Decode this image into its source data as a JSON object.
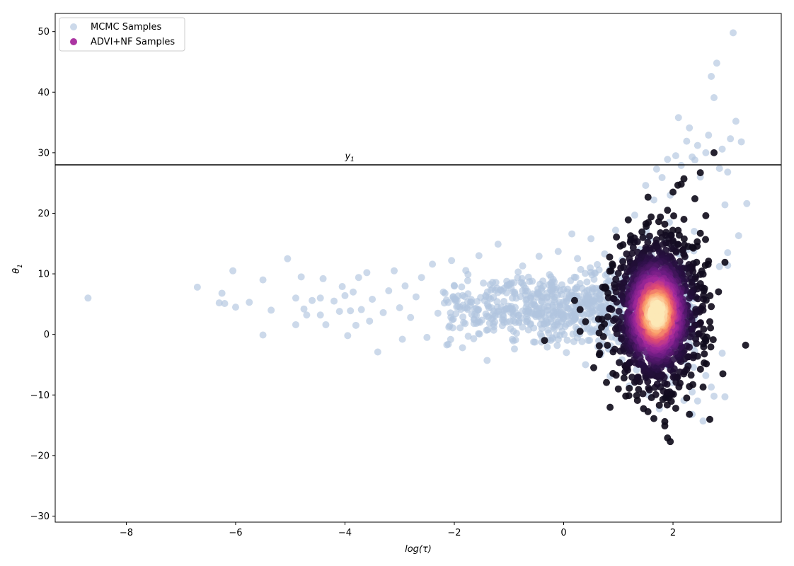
{
  "chart_data": {
    "type": "scatter",
    "title": "",
    "xlabel": "log(τ)",
    "ylabel": "θ",
    "ylabel_subscript": "1",
    "xlim": [
      -9.3,
      3.98
    ],
    "ylim": [
      -31,
      53
    ],
    "xticks": [
      -8,
      -6,
      -4,
      -2,
      0,
      2
    ],
    "yticks": [
      -30,
      -20,
      -10,
      0,
      10,
      20,
      30,
      40,
      50
    ],
    "xtick_labels": [
      "−8",
      "−6",
      "−4",
      "−2",
      "0",
      "2"
    ],
    "ytick_labels": [
      "−30",
      "−20",
      "−10",
      "0",
      "10",
      "20",
      "30",
      "40",
      "50"
    ],
    "grid": false,
    "legend_position": "top-left",
    "reference_line": {
      "y": 28,
      "label": "y",
      "label_subscript": "1",
      "label_x": -4
    },
    "series": [
      {
        "name": "MCMC Samples",
        "color": "#b0c4de",
        "points": [
          [
            -8.7,
            6.0
          ],
          [
            -6.7,
            7.8
          ],
          [
            -6.3,
            5.2
          ],
          [
            -6.25,
            6.8
          ],
          [
            -6.2,
            5.1
          ],
          [
            -6.05,
            10.5
          ],
          [
            -6.0,
            4.5
          ],
          [
            -5.75,
            5.3
          ],
          [
            -5.5,
            9.0
          ],
          [
            -5.5,
            -0.1
          ],
          [
            -5.35,
            4.0
          ],
          [
            -5.05,
            12.5
          ],
          [
            -4.9,
            6.0
          ],
          [
            -4.9,
            1.6
          ],
          [
            -4.8,
            9.5
          ],
          [
            -4.75,
            4.2
          ],
          [
            -4.7,
            3.2
          ],
          [
            -4.6,
            5.6
          ],
          [
            -4.45,
            6.0
          ],
          [
            -4.45,
            3.2
          ],
          [
            -4.4,
            9.2
          ],
          [
            -4.35,
            1.6
          ],
          [
            -4.2,
            5.5
          ],
          [
            -4.1,
            3.8
          ],
          [
            -4.05,
            7.9
          ],
          [
            -4.0,
            6.4
          ],
          [
            -3.95,
            -0.2
          ],
          [
            -3.9,
            3.9
          ],
          [
            -3.85,
            7.0
          ],
          [
            -3.8,
            1.5
          ],
          [
            -3.75,
            9.4
          ],
          [
            -3.7,
            4.1
          ],
          [
            -3.6,
            10.2
          ],
          [
            -3.55,
            2.2
          ],
          [
            -3.5,
            5.8
          ],
          [
            -3.4,
            -2.9
          ],
          [
            -3.3,
            3.6
          ],
          [
            -3.2,
            7.2
          ],
          [
            -3.1,
            10.5
          ],
          [
            -3.0,
            4.4
          ],
          [
            -2.95,
            -0.8
          ],
          [
            -2.9,
            8.0
          ],
          [
            -2.8,
            2.8
          ],
          [
            -2.7,
            6.2
          ],
          [
            -2.6,
            9.4
          ],
          [
            -2.5,
            -0.5
          ],
          [
            -2.4,
            11.6
          ],
          [
            -2.3,
            3.5
          ],
          [
            -2.2,
            7.0
          ],
          [
            -2.1,
            1.2
          ],
          [
            -2.05,
            12.2
          ],
          [
            -1.95,
            5.6
          ],
          [
            -1.85,
            -2.2
          ],
          [
            -1.75,
            9.9
          ],
          [
            -1.6,
            4.3
          ],
          [
            -1.55,
            13.0
          ],
          [
            -1.4,
            -4.3
          ],
          [
            -1.3,
            7.6
          ],
          [
            -1.2,
            14.9
          ],
          [
            -1.1,
            2.4
          ],
          [
            -0.9,
            -2.4
          ],
          [
            -0.75,
            11.3
          ],
          [
            -0.6,
            6.0
          ],
          [
            -0.45,
            12.9
          ],
          [
            -0.3,
            -2.1
          ],
          [
            -0.2,
            4.8
          ],
          [
            -0.1,
            13.7
          ],
          [
            0.05,
            -3.0
          ],
          [
            0.15,
            16.6
          ],
          [
            0.3,
            8.4
          ],
          [
            0.4,
            -5.0
          ],
          [
            0.5,
            15.8
          ],
          [
            0.6,
            0.9
          ],
          [
            0.75,
            13.3
          ],
          [
            0.85,
            -6.9
          ],
          [
            0.95,
            17.2
          ],
          [
            1.1,
            11.0
          ],
          [
            1.2,
            -8.5
          ],
          [
            1.3,
            19.7
          ],
          [
            1.4,
            14.0
          ],
          [
            1.5,
            24.6
          ],
          [
            1.55,
            -10.0
          ],
          [
            1.65,
            22.2
          ],
          [
            1.7,
            27.3
          ],
          [
            1.75,
            -12.3
          ],
          [
            1.8,
            25.9
          ],
          [
            1.9,
            28.9
          ],
          [
            1.95,
            23.0
          ],
          [
            2.05,
            29.5
          ],
          [
            2.1,
            35.8
          ],
          [
            2.15,
            27.9
          ],
          [
            2.2,
            -10.9
          ],
          [
            2.25,
            31.9
          ],
          [
            2.3,
            34.1
          ],
          [
            2.35,
            29.3
          ],
          [
            2.4,
            28.8
          ],
          [
            2.45,
            31.2
          ],
          [
            2.5,
            26.0
          ],
          [
            2.55,
            -14.3
          ],
          [
            2.6,
            30.0
          ],
          [
            2.65,
            32.9
          ],
          [
            2.7,
            42.6
          ],
          [
            2.75,
            39.1
          ],
          [
            2.8,
            44.8
          ],
          [
            2.85,
            27.4
          ],
          [
            2.9,
            30.6
          ],
          [
            2.95,
            21.4
          ],
          [
            3.0,
            26.8
          ],
          [
            3.05,
            32.3
          ],
          [
            3.1,
            49.8
          ],
          [
            3.15,
            35.2
          ],
          [
            3.2,
            16.3
          ],
          [
            3.25,
            31.8
          ],
          [
            3.35,
            21.6
          ],
          [
            2.75,
            -10.2
          ],
          [
            2.95,
            -10.3
          ],
          [
            2.35,
            -13.2
          ],
          [
            2.9,
            -3.1
          ],
          [
            2.85,
            11.2
          ],
          [
            3.0,
            11.4
          ],
          [
            3.0,
            13.5
          ],
          [
            2.45,
            -11.0
          ],
          [
            2.7,
            -8.7
          ],
          [
            2.6,
            -6.8
          ],
          [
            2.35,
            -9.5
          ],
          [
            2.1,
            13.4
          ]
        ]
      },
      {
        "name": "ADVI+NF Samples",
        "color": "#a72a9d",
        "colormap": "magma (point density)",
        "points": [
          [
            1.65,
            0.9
          ],
          [
            1.8,
            8.5
          ],
          [
            1.65,
            4.7
          ],
          [
            1.55,
            3.2
          ],
          [
            1.95,
            2.4
          ],
          [
            1.6,
            8.8
          ],
          [
            1.9,
            10.4
          ],
          [
            1.7,
            6.8
          ],
          [
            1.5,
            4.9
          ],
          [
            1.85,
            5.6
          ],
          [
            1.75,
            2.9
          ],
          [
            1.45,
            1.6
          ],
          [
            2.0,
            4.4
          ],
          [
            1.6,
            -0.6
          ],
          [
            1.4,
            2.6
          ],
          [
            1.75,
            -1.3
          ],
          [
            1.95,
            -3.0
          ],
          [
            1.55,
            6.1
          ],
          [
            2.05,
            7.1
          ],
          [
            1.35,
            5.5
          ],
          [
            1.8,
            12.0
          ],
          [
            1.5,
            8.6
          ],
          [
            2.1,
            -0.3
          ],
          [
            1.3,
            0.4
          ],
          [
            1.9,
            -4.8
          ],
          [
            1.4,
            -3.8
          ],
          [
            2.2,
            3.5
          ],
          [
            1.2,
            3.1
          ],
          [
            1.7,
            14.6
          ],
          [
            2.0,
            15.5
          ],
          [
            1.5,
            11.8
          ],
          [
            2.15,
            11.0
          ],
          [
            1.25,
            8.2
          ],
          [
            1.6,
            -6.4
          ],
          [
            2.25,
            -5.8
          ],
          [
            1.1,
            -2.0
          ],
          [
            2.3,
            6.0
          ],
          [
            1.05,
            6.5
          ],
          [
            1.85,
            18.2
          ],
          [
            1.45,
            16.0
          ],
          [
            2.2,
            19.0
          ],
          [
            1.3,
            -7.9
          ],
          [
            2.3,
            -8.6
          ],
          [
            0.95,
            0.9
          ],
          [
            2.4,
            1.5
          ],
          [
            1.9,
            20.5
          ],
          [
            1.6,
            19.4
          ],
          [
            2.35,
            14.4
          ],
          [
            1.0,
            10.1
          ],
          [
            1.15,
            -5.3
          ],
          [
            2.45,
            -3.6
          ],
          [
            0.85,
            4.3
          ],
          [
            2.5,
            9.9
          ],
          [
            2.0,
            23.5
          ],
          [
            1.75,
            -11.7
          ],
          [
            2.25,
            -10.5
          ],
          [
            1.45,
            -9.8
          ],
          [
            0.8,
            -1.8
          ],
          [
            2.55,
            4.0
          ],
          [
            0.75,
            7.6
          ],
          [
            2.5,
            16.7
          ],
          [
            2.15,
            24.8
          ],
          [
            1.85,
            -14.4
          ],
          [
            1.65,
            -13.9
          ],
          [
            2.05,
            -12.2
          ],
          [
            0.7,
            2.5
          ],
          [
            2.6,
            -1.1
          ],
          [
            1.35,
            -10.9
          ],
          [
            2.65,
            12.1
          ],
          [
            1.15,
            13.3
          ],
          [
            2.4,
            22.4
          ],
          [
            2.2,
            25.7
          ],
          [
            1.95,
            -17.7
          ],
          [
            1.9,
            -17.1
          ],
          [
            2.3,
            -13.2
          ],
          [
            0.55,
            -5.5
          ],
          [
            0.3,
            4.1
          ],
          [
            0.3,
            0.5
          ],
          [
            -0.35,
            -1.0
          ],
          [
            0.2,
            5.6
          ],
          [
            0.4,
            2.1
          ],
          [
            1.0,
            -9.0
          ],
          [
            1.2,
            -8.9
          ],
          [
            2.5,
            26.7
          ],
          [
            2.75,
            30.0
          ],
          [
            2.95,
            11.9
          ],
          [
            2.6,
            19.6
          ],
          [
            2.7,
            4.6
          ],
          [
            2.55,
            -8.7
          ],
          [
            1.85,
            -15.1
          ]
        ]
      }
    ]
  }
}
